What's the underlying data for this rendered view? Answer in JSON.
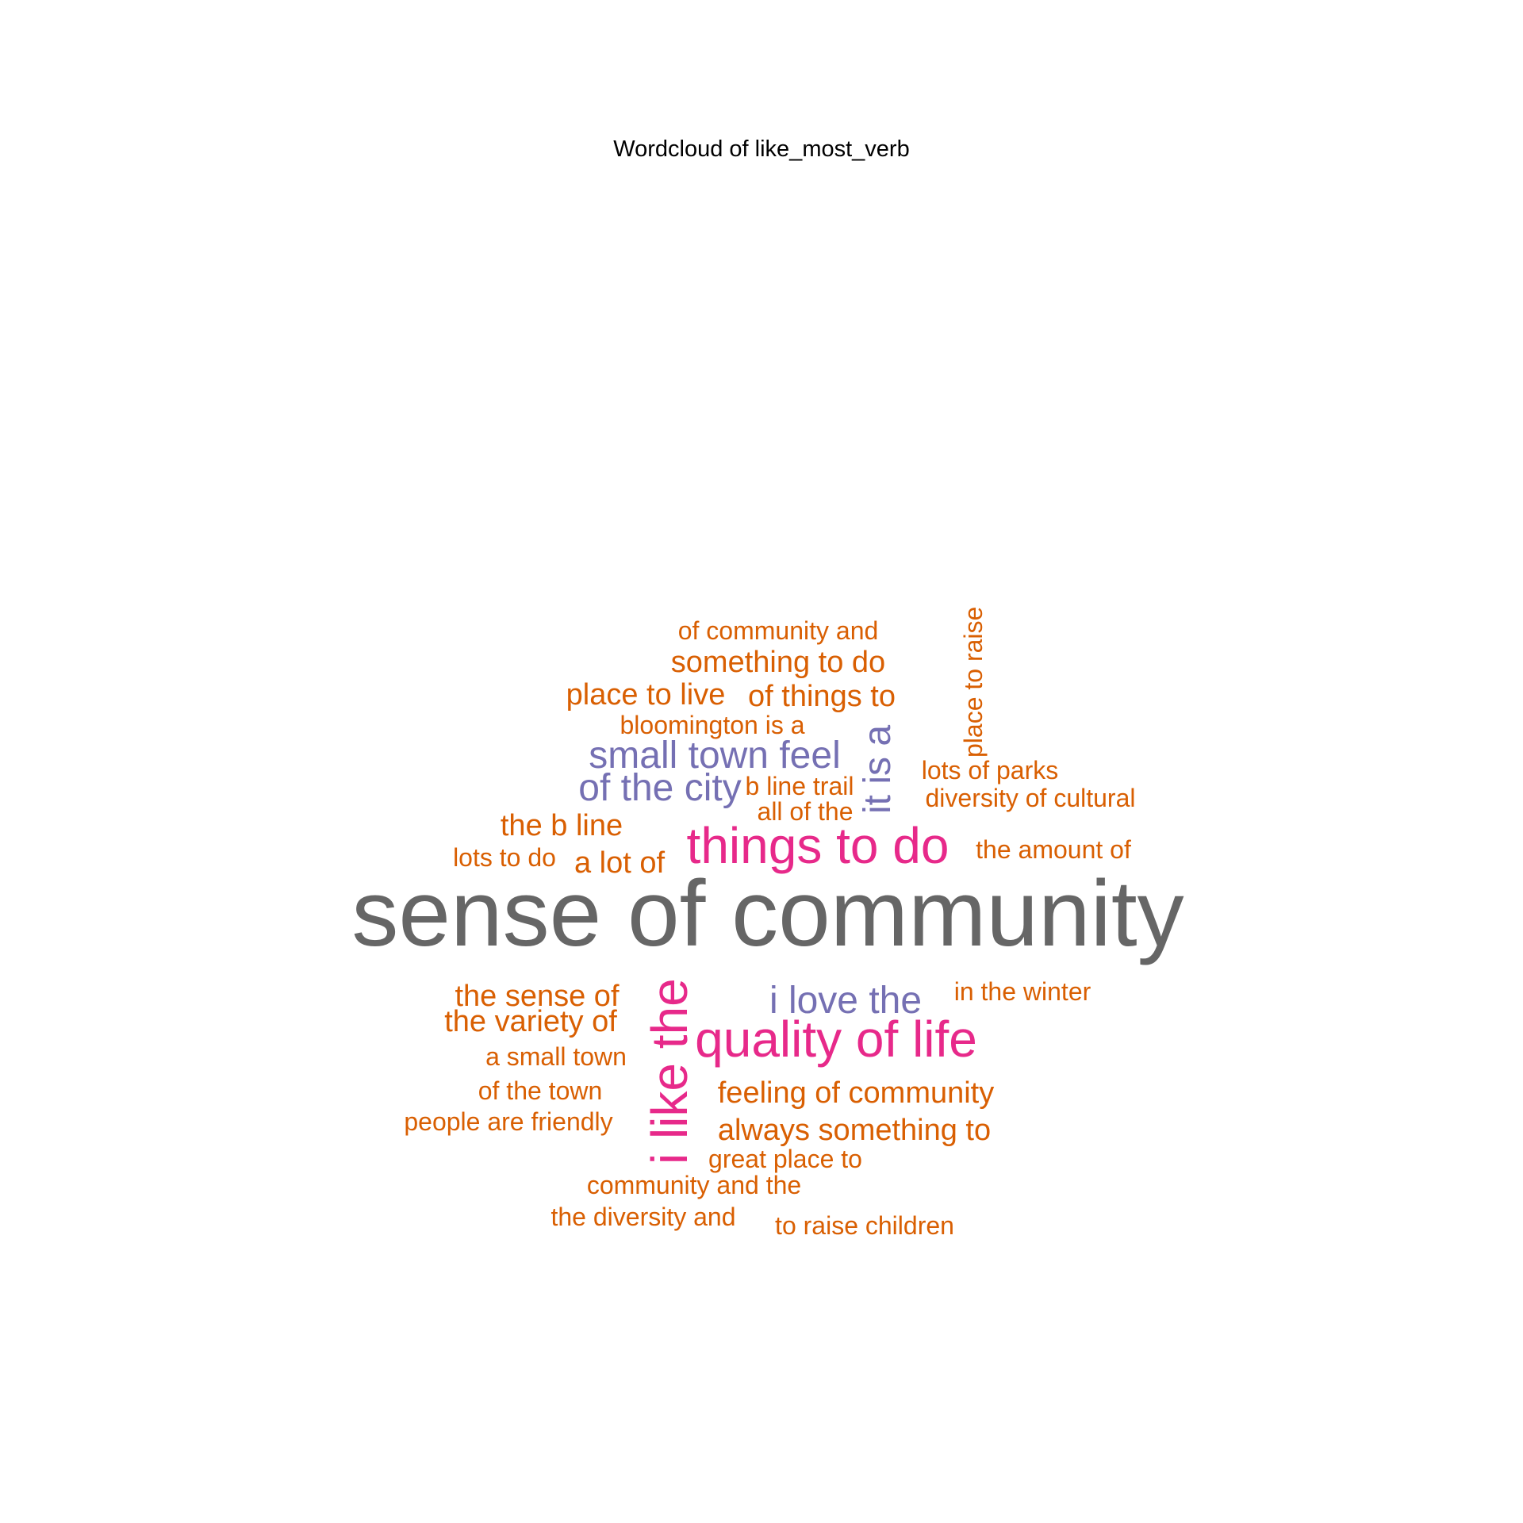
{
  "title": "Wordcloud of like_most_verb",
  "colors": {
    "orange": "#d95f02",
    "purple": "#7570b3",
    "magenta": "#e7298a",
    "gray": "#666666"
  },
  "chart_data": {
    "type": "wordcloud",
    "title": "Wordcloud of like_most_verb",
    "words": [
      {
        "text": "sense of community",
        "tier": 1,
        "color": "gray",
        "rotated": false
      },
      {
        "text": "things to do",
        "tier": 2,
        "color": "magenta",
        "rotated": false
      },
      {
        "text": "quality of life",
        "tier": 2,
        "color": "magenta",
        "rotated": false
      },
      {
        "text": "i like the",
        "tier": 2,
        "color": "magenta",
        "rotated": true
      },
      {
        "text": "small town feel",
        "tier": 3,
        "color": "purple",
        "rotated": false
      },
      {
        "text": "i love the",
        "tier": 3,
        "color": "purple",
        "rotated": false
      },
      {
        "text": "of the city",
        "tier": 3,
        "color": "purple",
        "rotated": false
      },
      {
        "text": "it is a",
        "tier": 3,
        "color": "purple",
        "rotated": true
      },
      {
        "text": "something to do",
        "tier": 4,
        "color": "orange",
        "rotated": false
      },
      {
        "text": "place to live",
        "tier": 4,
        "color": "orange",
        "rotated": false
      },
      {
        "text": "of things to",
        "tier": 4,
        "color": "orange",
        "rotated": false
      },
      {
        "text": "the b line",
        "tier": 4,
        "color": "orange",
        "rotated": false
      },
      {
        "text": "a lot of",
        "tier": 4,
        "color": "orange",
        "rotated": false
      },
      {
        "text": "the sense of",
        "tier": 4,
        "color": "orange",
        "rotated": false
      },
      {
        "text": "the variety of",
        "tier": 4,
        "color": "orange",
        "rotated": false
      },
      {
        "text": "feeling of community",
        "tier": 4,
        "color": "orange",
        "rotated": false
      },
      {
        "text": "always something to",
        "tier": 4,
        "color": "orange",
        "rotated": false
      },
      {
        "text": "of community and",
        "tier": 5,
        "color": "orange",
        "rotated": false
      },
      {
        "text": "bloomington is a",
        "tier": 5,
        "color": "orange",
        "rotated": false
      },
      {
        "text": "place to raise",
        "tier": 5,
        "color": "orange",
        "rotated": true
      },
      {
        "text": "lots of parks",
        "tier": 5,
        "color": "orange",
        "rotated": false
      },
      {
        "text": "diversity of cultural",
        "tier": 5,
        "color": "orange",
        "rotated": false
      },
      {
        "text": "b line trail",
        "tier": 5,
        "color": "orange",
        "rotated": false
      },
      {
        "text": "all of the",
        "tier": 5,
        "color": "orange",
        "rotated": false
      },
      {
        "text": "lots to do",
        "tier": 5,
        "color": "orange",
        "rotated": false
      },
      {
        "text": "the amount of",
        "tier": 5,
        "color": "orange",
        "rotated": false
      },
      {
        "text": "in the winter",
        "tier": 5,
        "color": "orange",
        "rotated": false
      },
      {
        "text": "a small town",
        "tier": 5,
        "color": "orange",
        "rotated": false
      },
      {
        "text": "of the town",
        "tier": 5,
        "color": "orange",
        "rotated": false
      },
      {
        "text": "people are friendly",
        "tier": 5,
        "color": "orange",
        "rotated": false
      },
      {
        "text": "great place to",
        "tier": 5,
        "color": "orange",
        "rotated": false
      },
      {
        "text": "community and the",
        "tier": 5,
        "color": "orange",
        "rotated": false
      },
      {
        "text": "the diversity and",
        "tier": 5,
        "color": "orange",
        "rotated": false
      },
      {
        "text": "to raise children",
        "tier": 5,
        "color": "orange",
        "rotated": false
      }
    ]
  }
}
